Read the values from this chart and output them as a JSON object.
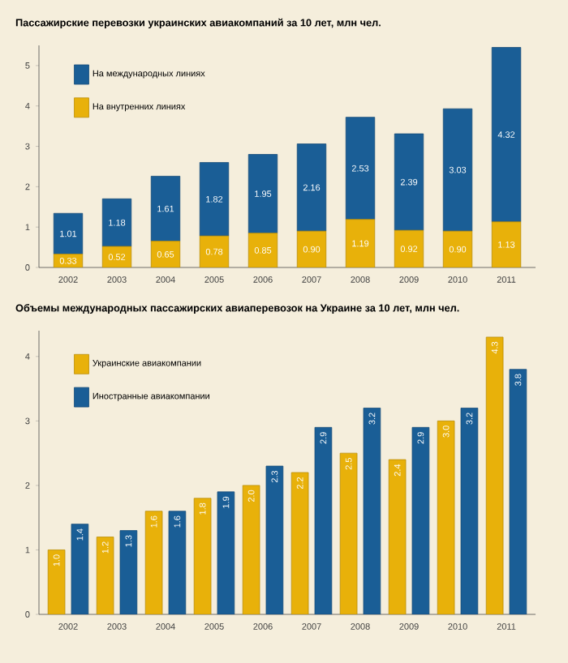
{
  "chart_data": [
    {
      "type": "bar",
      "stacked": true,
      "title": "Пассажирские перевозки украинских авиакомпаний за 10 лет, млн чел.",
      "categories": [
        "2002",
        "2003",
        "2004",
        "2005",
        "2006",
        "2007",
        "2008",
        "2009",
        "2010",
        "2011"
      ],
      "series": [
        {
          "name": "На внутренних линиях",
          "color": "#e8b10a",
          "values": [
            0.33,
            0.52,
            0.65,
            0.78,
            0.85,
            0.9,
            1.19,
            0.92,
            0.9,
            1.13
          ],
          "value_labels": [
            "0.33",
            "0.52",
            "0.65",
            "0.78",
            "0.85",
            "0.90",
            "1.19",
            "0.92",
            "0.90",
            "1.13"
          ]
        },
        {
          "name": "На международных линиях",
          "color": "#1a5e96",
          "values": [
            1.01,
            1.18,
            1.61,
            1.82,
            1.95,
            2.16,
            2.53,
            2.39,
            3.03,
            4.32
          ],
          "value_labels": [
            "1.01",
            "1.18",
            "1.61",
            "1.82",
            "1.95",
            "2.16",
            "2.53",
            "2.39",
            "3.03",
            "4.32"
          ]
        }
      ],
      "ylim": [
        0,
        5.5
      ],
      "yticks": [
        0,
        1,
        2,
        3,
        4,
        5
      ],
      "legend": "top left"
    },
    {
      "type": "bar",
      "title": "Объемы международных пассажирских авиаперевозок на Украине за 10 лет, млн чел.",
      "categories": [
        "2002",
        "2003",
        "2004",
        "2005",
        "2006",
        "2007",
        "2008",
        "2009",
        "2010",
        "2011"
      ],
      "series": [
        {
          "name": "Украинские авиакомпании",
          "color": "#e8b10a",
          "values": [
            1.0,
            1.2,
            1.6,
            1.8,
            2.0,
            2.2,
            2.5,
            2.4,
            3.0,
            4.3
          ],
          "value_labels": [
            "1.0",
            "1.2",
            "1.6",
            "1.8",
            "2.0",
            "2.2",
            "2.5",
            "2.4",
            "3.0",
            "4.3"
          ]
        },
        {
          "name": "Иностранные авиакомпании",
          "color": "#1a5e96",
          "values": [
            1.4,
            1.3,
            1.6,
            1.9,
            2.3,
            2.9,
            3.2,
            2.9,
            3.2,
            3.8
          ],
          "value_labels": [
            "1.4",
            "1.3",
            "1.6",
            "1.9",
            "2.3",
            "2.9",
            "3.2",
            "2.9",
            "3.2",
            "3.8"
          ]
        }
      ],
      "ylim": [
        0,
        4.4
      ],
      "yticks": [
        0,
        1,
        2,
        3,
        4
      ],
      "legend": "top left"
    }
  ]
}
